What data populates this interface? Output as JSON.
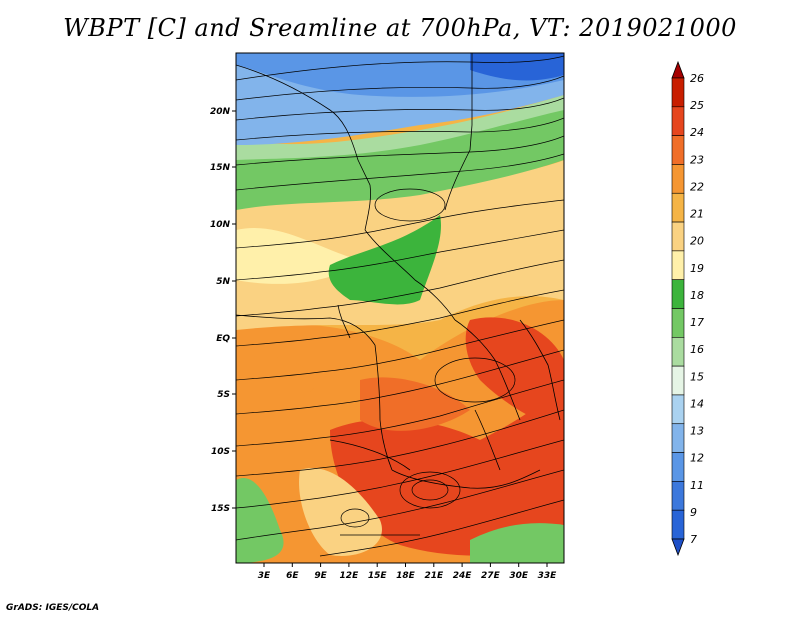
{
  "title": "WBPT [C] and Sreamline at 700hPa, VT: 2019021000",
  "footer": "GrADS: IGES/COLA",
  "map": {
    "lat_labels": [
      "20N",
      "15N",
      "10N",
      "5N",
      "EQ",
      "5S",
      "10S",
      "15S"
    ],
    "lon_labels": [
      "3E",
      "6E",
      "9E",
      "12E",
      "15E",
      "18E",
      "21E",
      "24E",
      "27E",
      "30E",
      "33E"
    ]
  },
  "colorbar": {
    "levels": [
      "26",
      "25",
      "24",
      "23",
      "22",
      "21",
      "20",
      "19",
      "18",
      "17",
      "16",
      "15",
      "14",
      "13",
      "12",
      "11",
      "9",
      "7"
    ],
    "colors": [
      "#a50000",
      "#c81e00",
      "#e6461e",
      "#f06e28",
      "#f59632",
      "#f5b446",
      "#fad282",
      "#fff0aa",
      "#3cb43c",
      "#73c864",
      "#aadca0",
      "#e6f5e6",
      "#aad2f0",
      "#82b4eb",
      "#5a96e6",
      "#3c78dc",
      "#2864d7",
      "#1e50c8"
    ]
  }
}
